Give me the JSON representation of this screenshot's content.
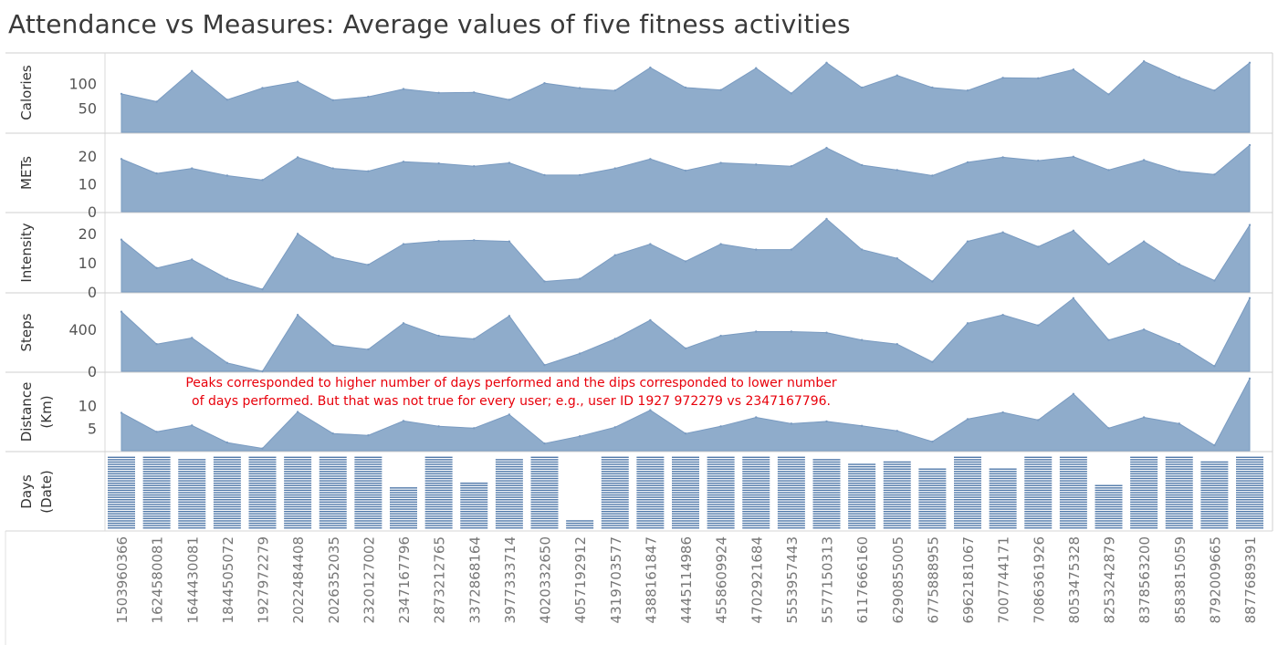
{
  "title": "Attendance vs Measures: Average values of five fitness activities",
  "chart_data": {
    "type": "area",
    "categories": [
      "1503960366",
      "1624580081",
      "1644430081",
      "1844505072",
      "1927972279",
      "2022484408",
      "2026352035",
      "2320127002",
      "2347167796",
      "2873212765",
      "3372868164",
      "3977333714",
      "4020332650",
      "4057192912",
      "4319703577",
      "4388161847",
      "4445114986",
      "4558609924",
      "4702921684",
      "5553957443",
      "5577150313",
      "6117666160",
      "6290855005",
      "6775888955",
      "6962181067",
      "7007744171",
      "7086361926",
      "8053475328",
      "8253242879",
      "8378563200",
      "8583815059",
      "8792009665",
      "8877689391"
    ],
    "panels": [
      {
        "label": "Calories",
        "ticks": [
          50,
          100
        ],
        "ylim": [
          0,
          152
        ],
        "values": [
          79,
          63,
          126,
          67,
          91,
          104,
          66,
          73,
          89,
          81,
          82,
          67,
          101,
          91,
          86,
          133,
          92,
          87,
          132,
          80,
          143,
          92,
          117,
          92,
          86,
          112,
          111,
          129,
          78,
          146,
          113,
          86,
          143
        ]
      },
      {
        "label": "METs",
        "ticks": [
          0,
          10,
          20
        ],
        "ylim": [
          0,
          26
        ],
        "values": [
          19,
          13.8,
          15.6,
          13,
          11.4,
          19.6,
          15.6,
          14.6,
          18,
          17.4,
          16.4,
          17.6,
          13.2,
          13.2,
          15.6,
          19,
          14.8,
          17.6,
          17,
          16.4,
          23,
          16.8,
          15,
          13,
          17.8,
          19.6,
          18.4,
          19.8,
          15,
          18.6,
          14.6,
          13.4,
          24
        ]
      },
      {
        "label": "Intensity",
        "ticks": [
          0,
          10,
          20
        ],
        "ylim": [
          0,
          25
        ],
        "values": [
          17.9,
          8.2,
          11.1,
          4.5,
          0.9,
          19.9,
          11.8,
          9.3,
          16.4,
          17.4,
          17.7,
          17.3,
          3.6,
          4.5,
          12.6,
          16.4,
          10.5,
          16.4,
          14.5,
          14.5,
          25.0,
          14.5,
          11.5,
          3.6,
          17.3,
          20.4,
          15.5,
          21.0,
          9.5,
          17.3,
          9.5,
          3.9,
          22.9
        ]
      },
      {
        "label": "Steps",
        "ticks": [
          0,
          400
        ],
        "ylim": [
          0,
          690
        ],
        "values": [
          570,
          260,
          320,
          80,
          0,
          540,
          250,
          210,
          460,
          340,
          310,
          530,
          60,
          170,
          310,
          490,
          220,
          340,
          380,
          380,
          370,
          300,
          260,
          90,
          460,
          540,
          440,
          700,
          300,
          400,
          260,
          50,
          700
        ]
      },
      {
        "label": "Distance (Km)",
        "ticks": [
          5,
          10
        ],
        "ylim": [
          0,
          16
        ],
        "values": [
          8.4,
          4.2,
          5.6,
          1.8,
          0.5,
          8.6,
          3.8,
          3.4,
          6.6,
          5.4,
          5.0,
          8.0,
          1.6,
          3.2,
          5.2,
          9.0,
          3.8,
          5.4,
          7.4,
          6.0,
          6.5,
          5.5,
          4.4,
          2.0,
          7.0,
          8.5,
          6.8,
          12.6,
          5.0,
          7.4,
          6.0,
          1.2,
          16.0
        ]
      }
    ],
    "days_label": "Days (Date)",
    "days": [
      31,
      31,
      30,
      31,
      31,
      31,
      31,
      31,
      18,
      31,
      20,
      30,
      31,
      4,
      31,
      31,
      31,
      31,
      31,
      31,
      30,
      28,
      29,
      26,
      31,
      26,
      31,
      31,
      19,
      31,
      31,
      29,
      31
    ],
    "annotation": [
      "Peaks corresponded to higher number of days performed and the dips corresponded to lower number",
      "of days performed. But that was not true for every user; e.g., user ID 1927 972279 vs 2347167796."
    ],
    "colors": {
      "area": "#8faccb",
      "area_line": "#7a9bc1",
      "bar": "#4e77a8",
      "annotation": "#e8000b",
      "gridline": "#d0d0d0"
    },
    "grid": false,
    "legend": "none"
  }
}
